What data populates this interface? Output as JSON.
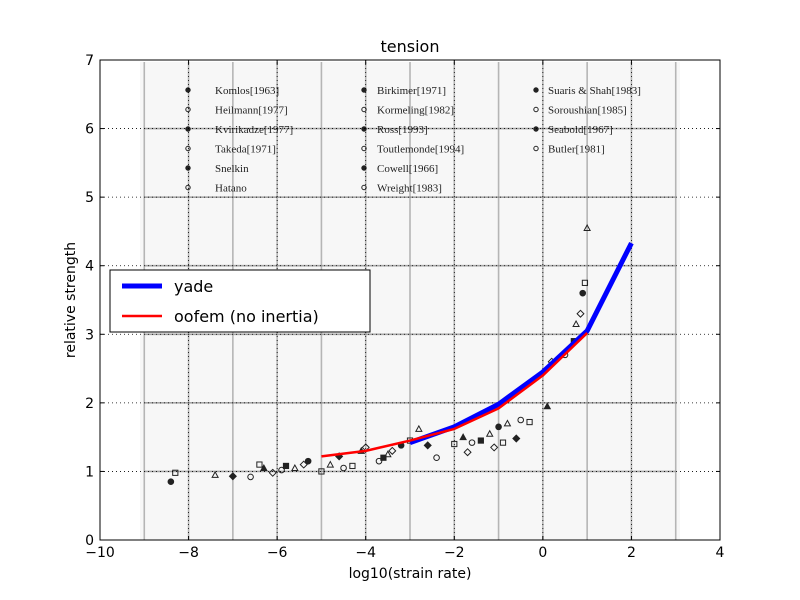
{
  "chart_data": {
    "type": "line",
    "title": "tension",
    "xlabel": "log10(strain rate)",
    "ylabel": "relative strength",
    "xlim": [
      -10,
      4
    ],
    "ylim": [
      0,
      7
    ],
    "xticks": [
      "−10",
      "−8",
      "−6",
      "−4",
      "−2",
      "0",
      "2",
      "4"
    ],
    "yticks": [
      "0",
      "1",
      "2",
      "3",
      "4",
      "5",
      "6",
      "7"
    ],
    "grid": true,
    "legend_position": "center-left",
    "series": [
      {
        "name": "yade",
        "color": "#0000ff",
        "x": [
          -3,
          -2,
          -1,
          0,
          1,
          2
        ],
        "y": [
          1.42,
          1.65,
          1.98,
          2.45,
          3.05,
          4.33
        ]
      },
      {
        "name": "oofem (no inertia)",
        "color": "#ff0000",
        "x": [
          -5,
          -4,
          -3,
          -2,
          -1,
          0,
          1
        ],
        "y": [
          1.22,
          1.3,
          1.45,
          1.62,
          1.92,
          2.4,
          3.02
        ]
      }
    ],
    "background_legend": [
      "Komlos[1963]",
      "Birkimer[1971]",
      "Suaris & Shah[1983]",
      "Heilmann[1977]",
      "Kormeling[1982]",
      "Soroushian[1985]",
      "Kvirikadze[1977]",
      "Ross[1993]",
      "Seabold[1967]",
      "Takeda[1971]",
      "Toutlemonde[1994]",
      "Butler[1981]",
      "Snelkin",
      "Cowell[1966]",
      "Hatano",
      "Wreight[1983]"
    ],
    "background_points": [
      [
        -8.4,
        0.85
      ],
      [
        -8.3,
        0.98
      ],
      [
        -7.4,
        0.95
      ],
      [
        -7.0,
        0.93
      ],
      [
        -6.6,
        0.92
      ],
      [
        -6.4,
        1.1
      ],
      [
        -6.3,
        1.05
      ],
      [
        -6.1,
        0.98
      ],
      [
        -5.9,
        1.02
      ],
      [
        -5.8,
        1.08
      ],
      [
        -5.6,
        1.05
      ],
      [
        -5.4,
        1.1
      ],
      [
        -5.3,
        1.15
      ],
      [
        -5.0,
        1.0
      ],
      [
        -4.8,
        1.1
      ],
      [
        -4.6,
        1.22
      ],
      [
        -4.5,
        1.05
      ],
      [
        -4.3,
        1.08
      ],
      [
        -4.1,
        1.3
      ],
      [
        -4.0,
        1.35
      ],
      [
        -3.7,
        1.15
      ],
      [
        -3.6,
        1.2
      ],
      [
        -3.5,
        1.25
      ],
      [
        -3.4,
        1.3
      ],
      [
        -3.2,
        1.38
      ],
      [
        -3.0,
        1.45
      ],
      [
        -2.8,
        1.62
      ],
      [
        -2.6,
        1.38
      ],
      [
        -2.4,
        1.2
      ],
      [
        -2.0,
        1.4
      ],
      [
        -1.8,
        1.5
      ],
      [
        -1.7,
        1.28
      ],
      [
        -1.6,
        1.42
      ],
      [
        -1.4,
        1.45
      ],
      [
        -1.2,
        1.55
      ],
      [
        -1.1,
        1.35
      ],
      [
        -1.0,
        1.65
      ],
      [
        -0.9,
        1.42
      ],
      [
        -0.8,
        1.7
      ],
      [
        -0.6,
        1.48
      ],
      [
        -0.5,
        1.75
      ],
      [
        -0.3,
        1.72
      ],
      [
        0.1,
        1.95
      ],
      [
        0.2,
        2.6
      ],
      [
        0.5,
        2.7
      ],
      [
        0.7,
        2.9
      ],
      [
        0.75,
        3.15
      ],
      [
        0.85,
        3.3
      ],
      [
        0.9,
        3.6
      ],
      [
        0.95,
        3.75
      ],
      [
        1.0,
        4.55
      ]
    ]
  }
}
